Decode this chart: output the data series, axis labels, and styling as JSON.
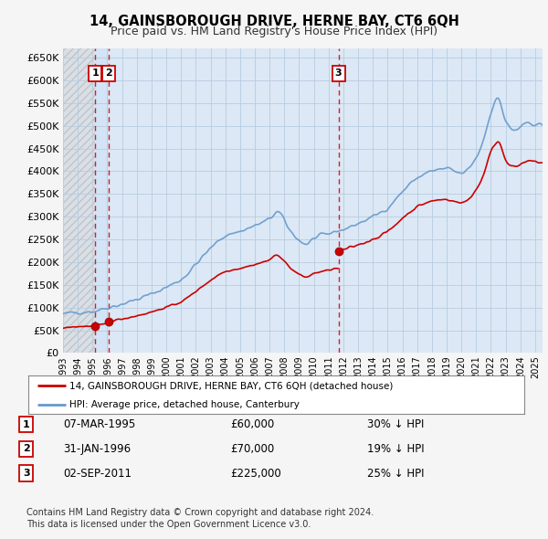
{
  "title": "14, GAINSBOROUGH DRIVE, HERNE BAY, CT6 6QH",
  "subtitle": "Price paid vs. HM Land Registry's House Price Index (HPI)",
  "legend_label_red": "14, GAINSBOROUGH DRIVE, HERNE BAY, CT6 6QH (detached house)",
  "legend_label_blue": "HPI: Average price, detached house, Canterbury",
  "transactions": [
    {
      "num": 1,
      "x_year": 1995.18,
      "price": 60000
    },
    {
      "num": 2,
      "x_year": 1996.08,
      "price": 70000
    },
    {
      "num": 3,
      "x_year": 2011.67,
      "price": 225000
    }
  ],
  "table_rows": [
    {
      "num": 1,
      "date": "07-MAR-1995",
      "price": "£60,000",
      "pct": "30% ↓ HPI"
    },
    {
      "num": 2,
      "date": "31-JAN-1996",
      "price": "£70,000",
      "pct": "19% ↓ HPI"
    },
    {
      "num": 3,
      "date": "02-SEP-2011",
      "price": "£225,000",
      "pct": "25% ↓ HPI"
    }
  ],
  "footnote1": "Contains HM Land Registry data © Crown copyright and database right 2024.",
  "footnote2": "This data is licensed under the Open Government Licence v3.0.",
  "xlim": [
    1993.0,
    2025.5
  ],
  "ylim": [
    0,
    670000
  ],
  "yticks": [
    0,
    50000,
    100000,
    150000,
    200000,
    250000,
    300000,
    350000,
    400000,
    450000,
    500000,
    550000,
    600000,
    650000
  ],
  "xtick_years": [
    1993,
    1994,
    1995,
    1996,
    1997,
    1998,
    1999,
    2000,
    2001,
    2002,
    2003,
    2004,
    2005,
    2006,
    2007,
    2008,
    2009,
    2010,
    2011,
    2012,
    2013,
    2014,
    2015,
    2016,
    2017,
    2018,
    2019,
    2020,
    2021,
    2022,
    2023,
    2024,
    2025
  ],
  "fig_bg": "#f5f5f5",
  "plot_bg": "#dce8f5",
  "hatch_bg": "#e8e8e8",
  "grid_color": "#b8cce0",
  "hpi_color": "#6699cc",
  "red_color": "#cc0000",
  "vline_color": "#cc0000",
  "shade_color": "#d0e4f7"
}
